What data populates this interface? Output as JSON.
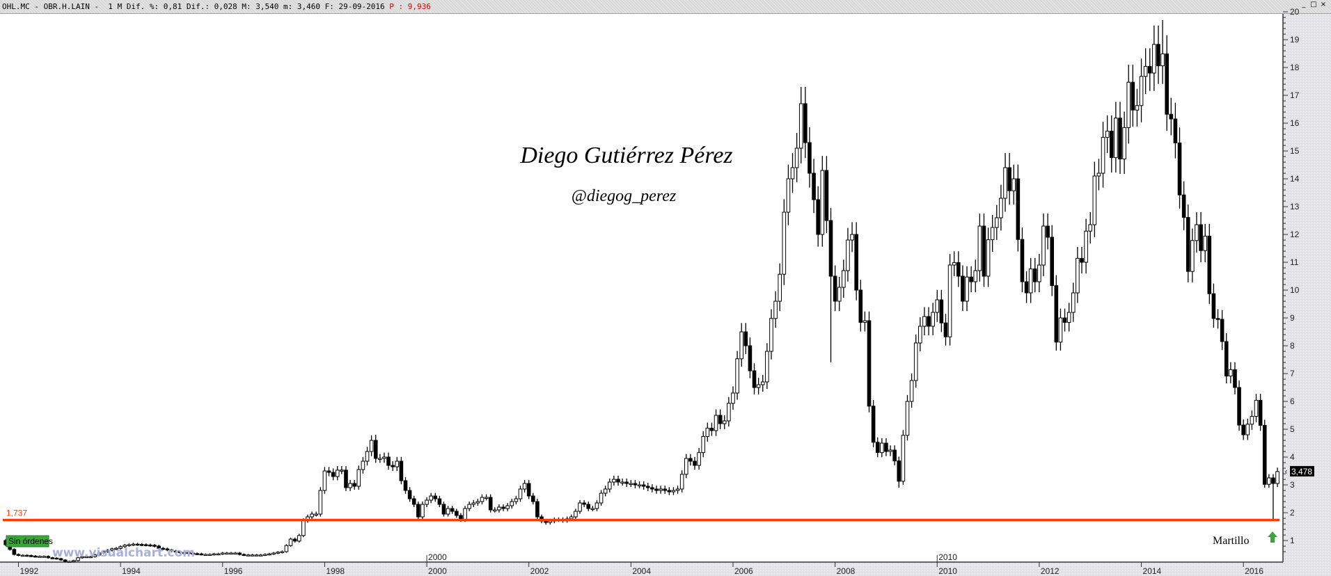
{
  "header": {
    "info": "OHL.MC - OBR.H.LAIN -  1 M Dif. %: 0,81 Dif.: 0,028 M: 3,540 m: 3,460 F: 29-09-2016 ",
    "p_value": "P : 9,936",
    "window_buttons": {
      "minimize": "_",
      "maximize": "□",
      "close": "×"
    }
  },
  "overlay": {
    "author": "Diego Gutiérrez Pérez",
    "handle": "@diegog_perez",
    "watermark": "www.visualchart.com",
    "status_badge": "Sin órdenes",
    "pattern_label": "Martillo",
    "pattern_icon": "green-up-arrow",
    "support_label": "1,737",
    "last_price_tag": "3,478"
  },
  "colors": {
    "support_line": "#ff3c00",
    "badge": "#3aa63a",
    "up_candle": "#ffffff",
    "down_candle": "#000000",
    "arrow": "#3aa63a",
    "watermark": "#aab0d8"
  },
  "chart_data": {
    "type": "candlestick",
    "frequency": "monthly",
    "start": "1991-10",
    "end": "2016-09",
    "open_rule": "previous close",
    "first_open": 1.0,
    "close": [
      0.85,
      0.68,
      0.5,
      0.47,
      0.47,
      0.46,
      0.44,
      0.43,
      0.43,
      0.43,
      0.38,
      0.37,
      0.35,
      0.3,
      0.25,
      0.25,
      0.28,
      0.38,
      0.42,
      0.42,
      0.42,
      0.48,
      0.55,
      0.6,
      0.65,
      0.7,
      0.72,
      0.78,
      0.83,
      0.85,
      0.87,
      0.86,
      0.85,
      0.84,
      0.83,
      0.8,
      0.72,
      0.7,
      0.66,
      0.62,
      0.6,
      0.57,
      0.57,
      0.55,
      0.53,
      0.52,
      0.5,
      0.5,
      0.5,
      0.52,
      0.52,
      0.55,
      0.55,
      0.55,
      0.55,
      0.5,
      0.48,
      0.48,
      0.48,
      0.48,
      0.48,
      0.5,
      0.52,
      0.55,
      0.58,
      0.6,
      0.82,
      1.05,
      0.98,
      1.18,
      1.72,
      1.85,
      1.95,
      1.95,
      2.8,
      3.5,
      3.45,
      3.3,
      3.53,
      3.53,
      2.9,
      3.05,
      2.95,
      3.55,
      3.85,
      4.2,
      4.6,
      3.95,
      3.95,
      4.0,
      3.7,
      3.65,
      3.85,
      3.15,
      2.8,
      2.5,
      2.3,
      1.85,
      2.3,
      2.45,
      2.6,
      2.5,
      2.3,
      1.95,
      2.15,
      2.05,
      1.9,
      1.75,
      2.15,
      2.3,
      2.35,
      2.4,
      2.55,
      2.55,
      2.1,
      2.1,
      2.2,
      2.15,
      2.25,
      2.4,
      2.5,
      2.85,
      3.05,
      2.6,
      2.4,
      1.85,
      1.7,
      1.65,
      1.7,
      1.75,
      1.75,
      1.72,
      1.78,
      1.85,
      2.05,
      2.35,
      2.3,
      2.15,
      2.15,
      2.35,
      2.7,
      2.85,
      3.1,
      3.2,
      3.1,
      3.1,
      3.05,
      3.05,
      3.0,
      3.0,
      2.95,
      2.9,
      2.85,
      2.8,
      2.85,
      2.8,
      2.75,
      2.8,
      2.85,
      3.38,
      3.95,
      3.85,
      3.7,
      4.16,
      4.74,
      5.04,
      4.95,
      5.5,
      5.2,
      5.3,
      5.93,
      6.3,
      7.53,
      8.5,
      8.0,
      7.1,
      6.5,
      6.6,
      6.7,
      7.8,
      8.98,
      9.6,
      10.57,
      12.8,
      14.0,
      14.4,
      15.1,
      16.7,
      15.3,
      14.2,
      13.25,
      12.0,
      14.3,
      12.5,
      10.5,
      9.6,
      10.1,
      10.7,
      11.8,
      12.0,
      10.0,
      8.84,
      8.9,
      5.83,
      4.53,
      4.16,
      4.5,
      4.2,
      4.25,
      3.86,
      3.13,
      4.78,
      6.0,
      6.75,
      8.1,
      8.7,
      9.05,
      8.7,
      9.2,
      9.65,
      8.82,
      8.32,
      10.9,
      10.99,
      10.5,
      9.6,
      10.47,
      10.3,
      10.7,
      12.3,
      10.5,
      11.81,
      12.25,
      12.6,
      13.3,
      14.4,
      13.57,
      14.0,
      11.82,
      10.3,
      9.9,
      10.76,
      10.3,
      10.9,
      12.3,
      11.9,
      10.16,
      8.13,
      9.0,
      8.84,
      9.2,
      9.9,
      11.14,
      11.0,
      12.12,
      12.35,
      14.1,
      14.2,
      15.49,
      15.71,
      14.76,
      16.18,
      14.71,
      15.84,
      17.47,
      16.47,
      16.63,
      17.68,
      18.04,
      17.8,
      18.83,
      18.06,
      18.49,
      16.32,
      16.15,
      15.29,
      13.42,
      12.61,
      10.67,
      11.78,
      12.35,
      11.42,
      11.94,
      9.87,
      8.98,
      8.95,
      8.15,
      6.91,
      7.14,
      6.5,
      5.15,
      4.8,
      5.18,
      5.46,
      6.04,
      5.14,
      3.02,
      3.25,
      3.05,
      3.478
    ],
    "extremes": [
      {
        "date": "1999-01",
        "high": 4.8
      },
      {
        "date": "2007-05",
        "high": 17.3
      },
      {
        "date": "2007-12",
        "low": 7.4
      },
      {
        "date": "2009-04",
        "low": 2.9
      },
      {
        "date": "2014-06",
        "high": 19.7
      },
      {
        "date": "2016-08",
        "low": 1.75
      }
    ],
    "support_level": 1.737,
    "last_price": 3.478,
    "y_axis": {
      "min": 0.5,
      "max": 20,
      "ticks": [
        1,
        2,
        3,
        4,
        5,
        6,
        7,
        8,
        9,
        10,
        11,
        12,
        13,
        14,
        15,
        16,
        17,
        18,
        19,
        20
      ],
      "position": "right"
    },
    "x_axis": {
      "ticks": [
        "1992",
        "1994",
        "1996",
        "1998",
        "2000",
        "2002",
        "2004",
        "2006",
        "2008",
        "2010",
        "2012",
        "2014",
        "2016"
      ],
      "upper_marks": [
        "2000",
        "2010"
      ]
    },
    "grid": false
  }
}
